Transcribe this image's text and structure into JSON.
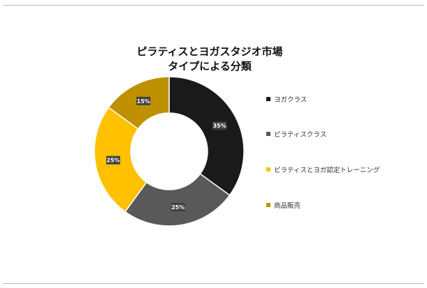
{
  "chart_data": {
    "type": "pie",
    "subtype": "donut",
    "title": "ピラティスとヨガスタジオ市場",
    "subtitle": "タイプによる分類",
    "categories": [
      "ヨガクラス",
      "ピラティスクラス",
      "ピラティスとヨガ認定トレーニング",
      "商品販売"
    ],
    "values": [
      35,
      25,
      25,
      15
    ],
    "data_labels": [
      "35%",
      "25%",
      "25%",
      "15%"
    ],
    "colors": [
      "#1a1a1a",
      "#595959",
      "#ffc000",
      "#bf9000"
    ],
    "legend_position": "right"
  }
}
